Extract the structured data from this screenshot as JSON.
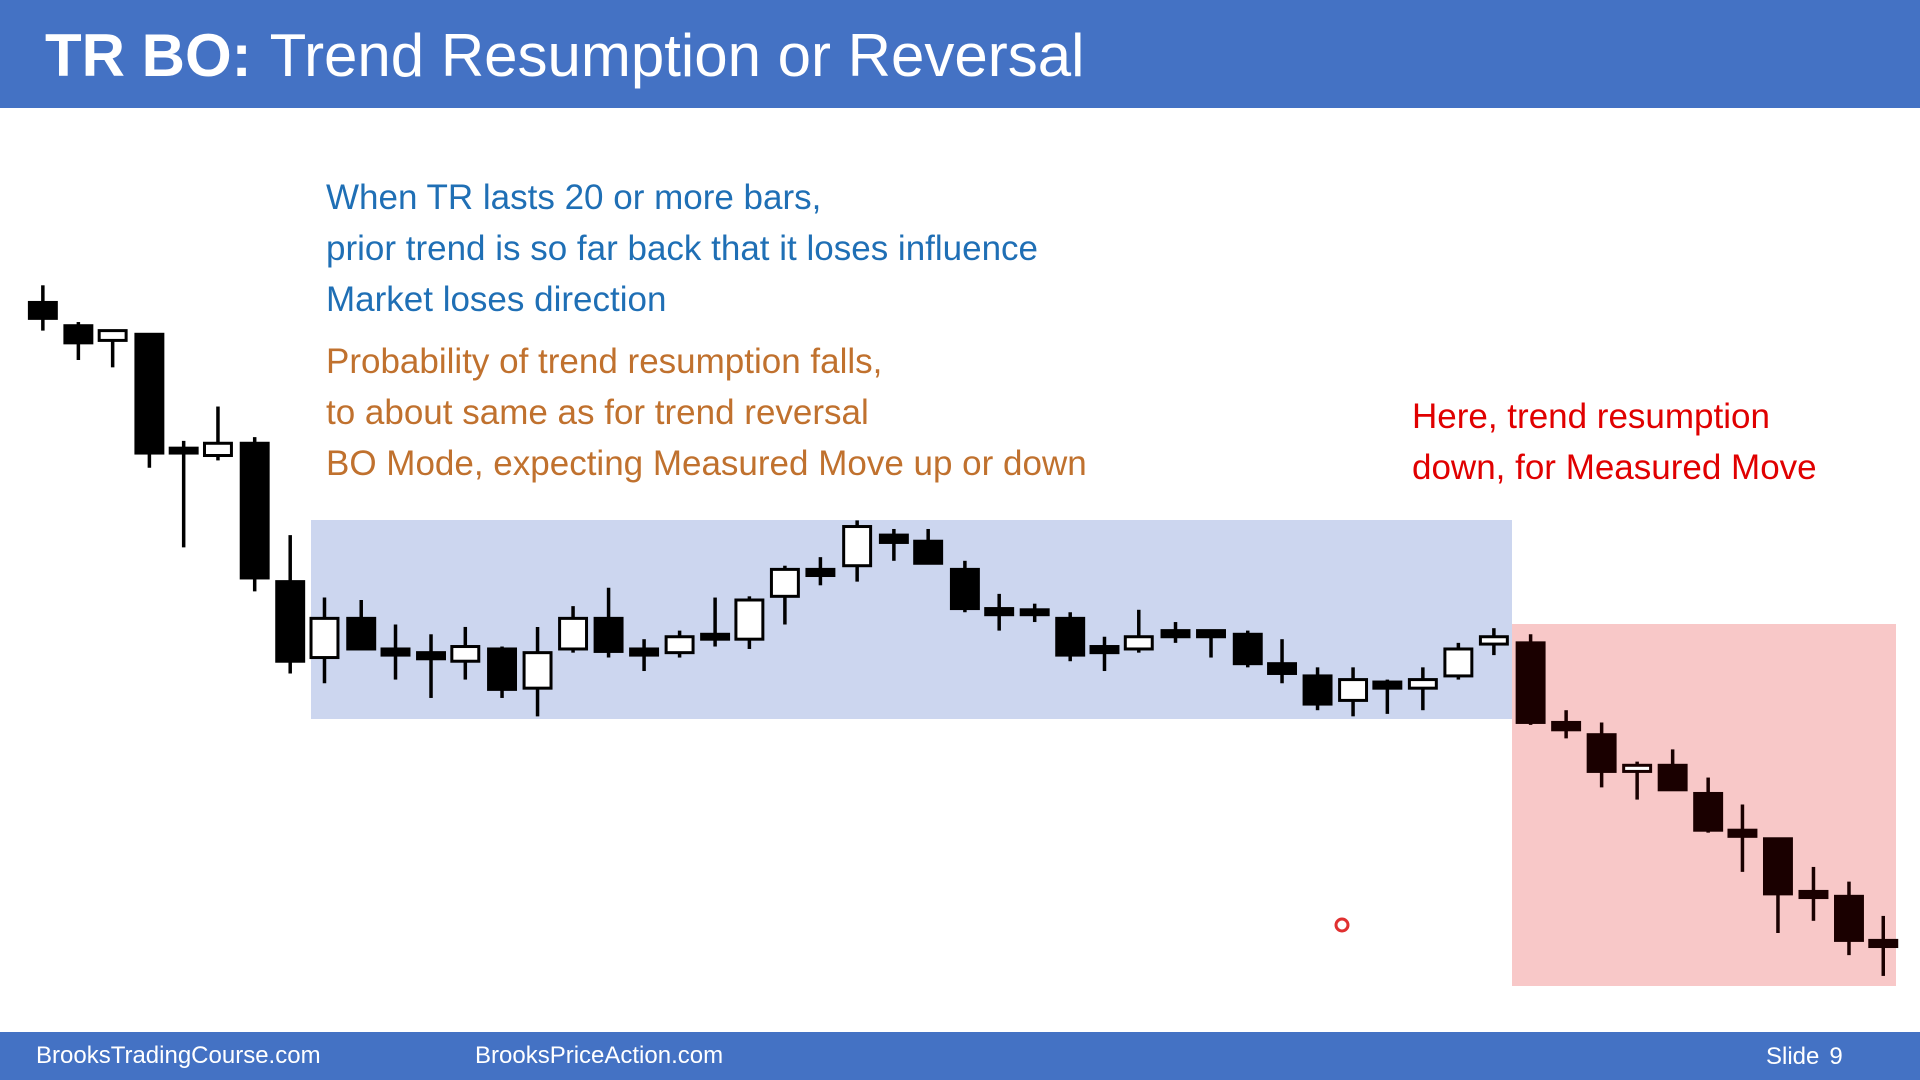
{
  "header": {
    "title_bold": "TR BO:",
    "title": "Trend Resumption or Reversal"
  },
  "body": {
    "blue_lines": [
      "When TR lasts 20 or more bars,",
      "prior trend is so far back that it loses influence",
      "Market loses direction"
    ],
    "orange_lines": [
      "Probability of trend resumption falls,",
      "to about same as for trend reversal",
      "BO Mode, expecting Measured Move up or down"
    ],
    "red_lines": [
      "Here, trend resumption",
      "down, for Measured Move"
    ]
  },
  "footer": {
    "left": "BrooksTradingCourse.com",
    "center": "BrooksPriceAction.com",
    "slide_label": "Slide",
    "slide_number": "9"
  }
}
